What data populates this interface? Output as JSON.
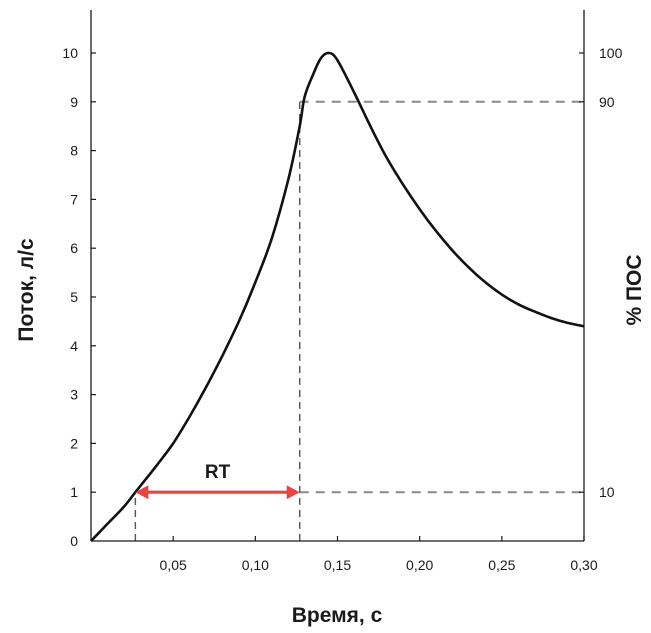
{
  "chart_data": {
    "type": "line",
    "xlabel": "Время, с",
    "ylabel": "Поток, л/с",
    "y2label": "% ПОС",
    "xlim": [
      0,
      0.3
    ],
    "ylim": [
      0,
      10.5
    ],
    "x_ticks": [
      {
        "value": 0.05,
        "label": "0,05"
      },
      {
        "value": 0.1,
        "label": "0,10"
      },
      {
        "value": 0.15,
        "label": "0,15"
      },
      {
        "value": 0.2,
        "label": "0,20"
      },
      {
        "value": 0.25,
        "label": "0,25"
      },
      {
        "value": 0.3,
        "label": "0,30"
      }
    ],
    "origin_label": "0",
    "y_ticks": [
      {
        "value": 1,
        "label": "1"
      },
      {
        "value": 2,
        "label": "2"
      },
      {
        "value": 3,
        "label": "3"
      },
      {
        "value": 4,
        "label": "4"
      },
      {
        "value": 5,
        "label": "5"
      },
      {
        "value": 6,
        "label": "6"
      },
      {
        "value": 7,
        "label": "7"
      },
      {
        "value": 8,
        "label": "8"
      },
      {
        "value": 9,
        "label": "9"
      },
      {
        "value": 10,
        "label": "10"
      }
    ],
    "y2_ticks": [
      {
        "value": 1,
        "label": "10"
      },
      {
        "value": 9,
        "label": "90"
      },
      {
        "value": 10,
        "label": "100"
      }
    ],
    "series": [
      {
        "points": [
          [
            0.0,
            0.0
          ],
          [
            0.01,
            0.35
          ],
          [
            0.02,
            0.7
          ],
          [
            0.027,
            1.0
          ],
          [
            0.04,
            1.55
          ],
          [
            0.05,
            2.0
          ],
          [
            0.06,
            2.55
          ],
          [
            0.07,
            3.15
          ],
          [
            0.08,
            3.8
          ],
          [
            0.09,
            4.5
          ],
          [
            0.1,
            5.3
          ],
          [
            0.11,
            6.2
          ],
          [
            0.12,
            7.4
          ],
          [
            0.127,
            8.5
          ],
          [
            0.13,
            9.1
          ],
          [
            0.135,
            9.55
          ],
          [
            0.14,
            9.9
          ],
          [
            0.145,
            10.0
          ],
          [
            0.15,
            9.85
          ],
          [
            0.16,
            9.2
          ],
          [
            0.17,
            8.5
          ],
          [
            0.18,
            7.85
          ],
          [
            0.19,
            7.3
          ],
          [
            0.2,
            6.8
          ],
          [
            0.21,
            6.35
          ],
          [
            0.22,
            5.95
          ],
          [
            0.23,
            5.6
          ],
          [
            0.24,
            5.3
          ],
          [
            0.25,
            5.05
          ],
          [
            0.26,
            4.85
          ],
          [
            0.27,
            4.7
          ],
          [
            0.28,
            4.57
          ],
          [
            0.29,
            4.47
          ],
          [
            0.3,
            4.4
          ]
        ],
        "color": "#111111"
      }
    ],
    "reference_lines": [
      {
        "y": 1,
        "x_from": 0.127,
        "x_to": 0.3,
        "style": "dashed",
        "color": "#8a8a8a"
      },
      {
        "y": 9,
        "x_from": 0.127,
        "x_to": 0.3,
        "style": "dashed",
        "color": "#8a8a8a"
      },
      {
        "x": 0.127,
        "y_from": 0,
        "y_to": 9,
        "style": "dashed",
        "color": "#555555"
      },
      {
        "x": 0.027,
        "y_from": 0,
        "y_to": 1,
        "style": "dashed",
        "color": "#555555"
      }
    ],
    "annotations": [
      {
        "type": "double-arrow",
        "x_from": 0.027,
        "x_to": 0.127,
        "y": 1,
        "color": "#e8453c",
        "label": "RT"
      }
    ]
  }
}
